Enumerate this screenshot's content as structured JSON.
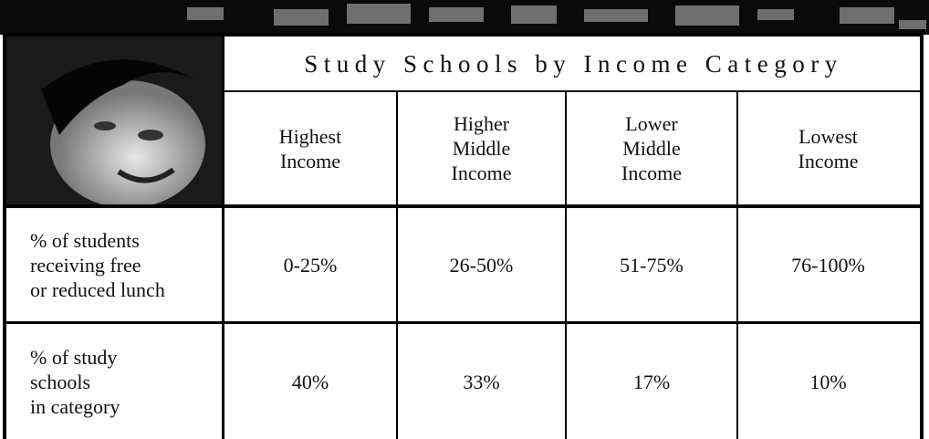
{
  "table": {
    "title": "Study Schools by Income Category",
    "columns": [
      [
        "Highest",
        "Income"
      ],
      [
        "Higher",
        "Middle",
        "Income"
      ],
      [
        "Lower",
        "Middle",
        "Income"
      ],
      [
        "Lowest",
        "Income"
      ]
    ],
    "rows": [
      {
        "label": [
          "% of students",
          "receiving free",
          "or reduced lunch"
        ],
        "cells": [
          "0-25%",
          "26-50%",
          "51-75%",
          "76-100%"
        ]
      },
      {
        "label": [
          "% of study",
          "schools",
          "in category"
        ],
        "cells": [
          "40%",
          "33%",
          "17%",
          "10%"
        ]
      }
    ]
  }
}
